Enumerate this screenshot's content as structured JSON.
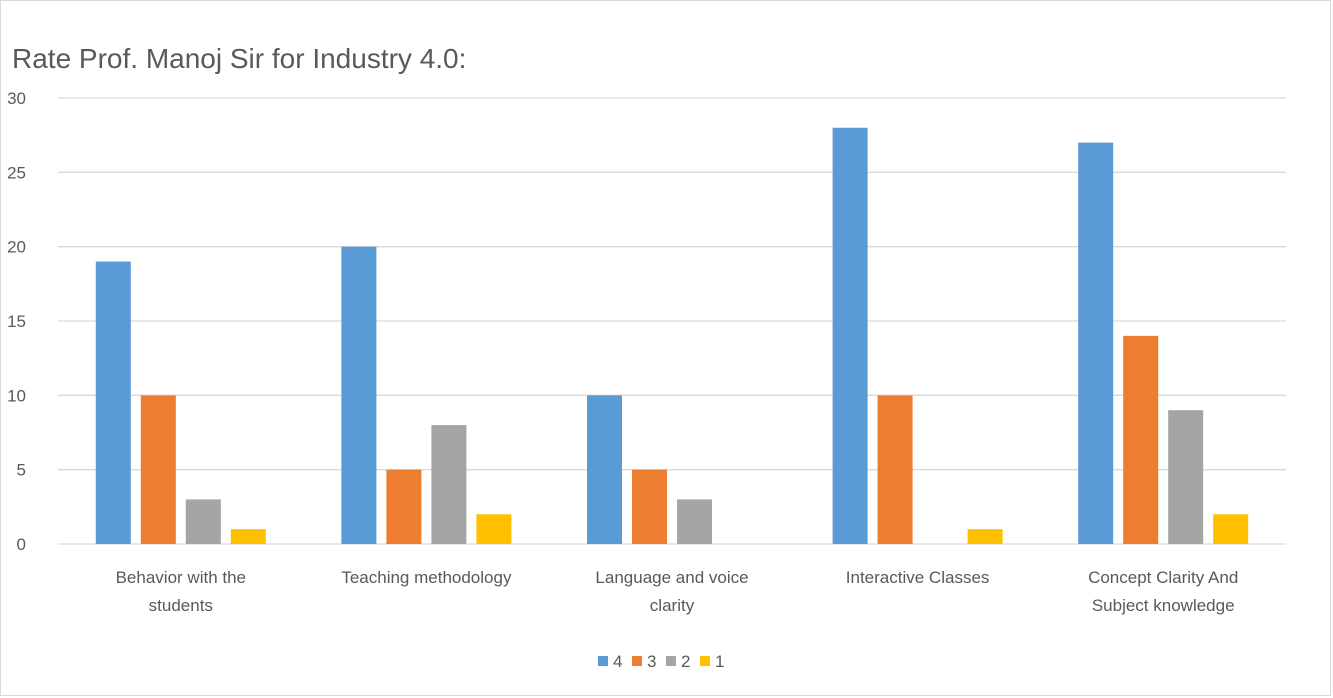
{
  "chart_data": {
    "type": "bar",
    "title": "Rate Prof. Manoj Sir for Industry 4.0:",
    "categories": [
      [
        "Behavior with the",
        "students"
      ],
      [
        "Teaching methodology"
      ],
      [
        "Language and voice",
        "clarity"
      ],
      [
        "Interactive Classes"
      ],
      [
        "Concept Clarity And",
        "Subject knowledge"
      ]
    ],
    "series": [
      {
        "name": "4",
        "color": "#5B9BD5",
        "values": [
          19,
          20,
          10,
          28,
          27
        ]
      },
      {
        "name": "3",
        "color": "#ED7D31",
        "values": [
          10,
          5,
          5,
          10,
          14
        ]
      },
      {
        "name": "2",
        "color": "#A5A5A5",
        "values": [
          3,
          8,
          3,
          0,
          9
        ]
      },
      {
        "name": "1",
        "color": "#FFC000",
        "values": [
          1,
          2,
          0,
          1,
          2
        ]
      }
    ],
    "ylim": [
      0,
      30
    ],
    "yticks": [
      0,
      5,
      10,
      15,
      20,
      25,
      30
    ],
    "grid": true,
    "legend_position": "bottom"
  }
}
